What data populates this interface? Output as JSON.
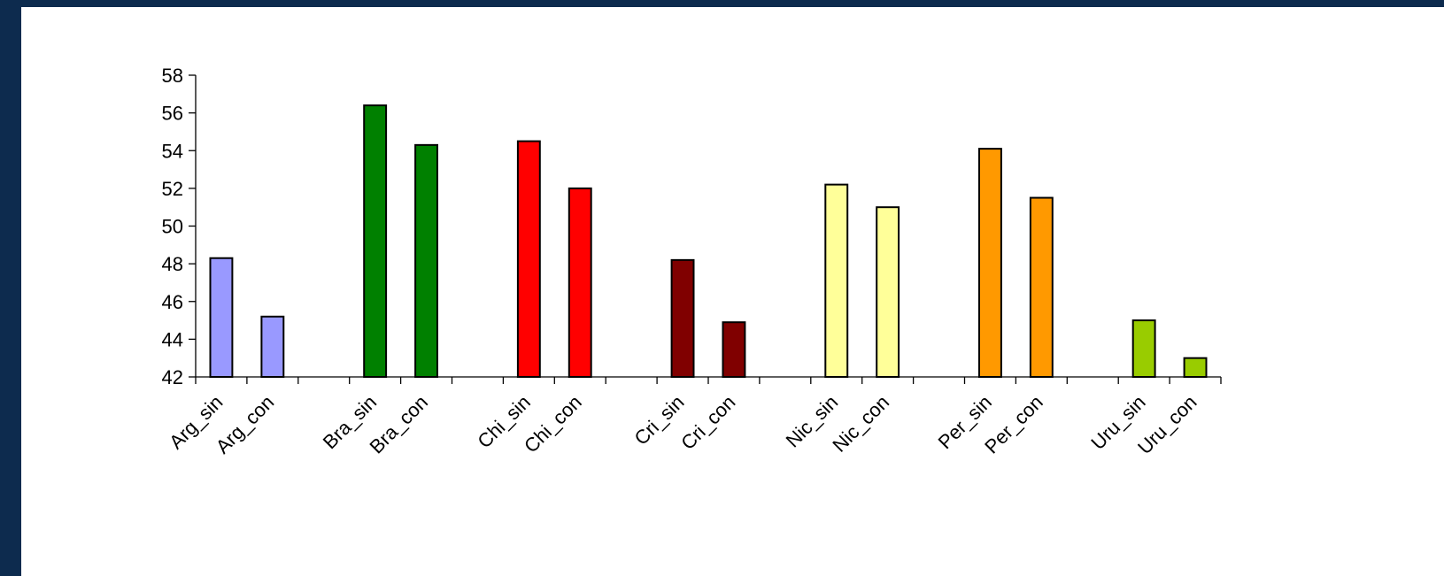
{
  "chart_data": {
    "type": "bar",
    "title": "",
    "xlabel": "",
    "ylabel": "",
    "ylim": [
      42,
      58
    ],
    "yticks": [
      42,
      44,
      46,
      48,
      50,
      52,
      54,
      56,
      58
    ],
    "grid": false,
    "legend": "none",
    "categories": [
      "Arg_sin",
      "Arg_con",
      "",
      "Bra_sin",
      "Bra_con",
      "",
      "Chi_sin",
      "Chi_con",
      "",
      "Cri_sin",
      "Cri_con",
      "",
      "Nic_sin",
      "Nic_con",
      "",
      "Per_sin",
      "Per_con",
      "",
      "Uru_sin",
      "Uru_con"
    ],
    "values": [
      48.3,
      45.2,
      null,
      56.4,
      54.3,
      null,
      54.5,
      52.0,
      null,
      48.2,
      44.9,
      null,
      52.2,
      51.0,
      null,
      54.1,
      51.5,
      null,
      45.0,
      43.0
    ],
    "colors": [
      "#9999ff",
      "#9999ff",
      "",
      "#008000",
      "#008000",
      "",
      "#ff0000",
      "#ff0000",
      "",
      "#800000",
      "#800000",
      "",
      "#ffff99",
      "#ffff99",
      "",
      "#ff9900",
      "#ff9900",
      "",
      "#99cc00",
      "#99cc00"
    ]
  }
}
